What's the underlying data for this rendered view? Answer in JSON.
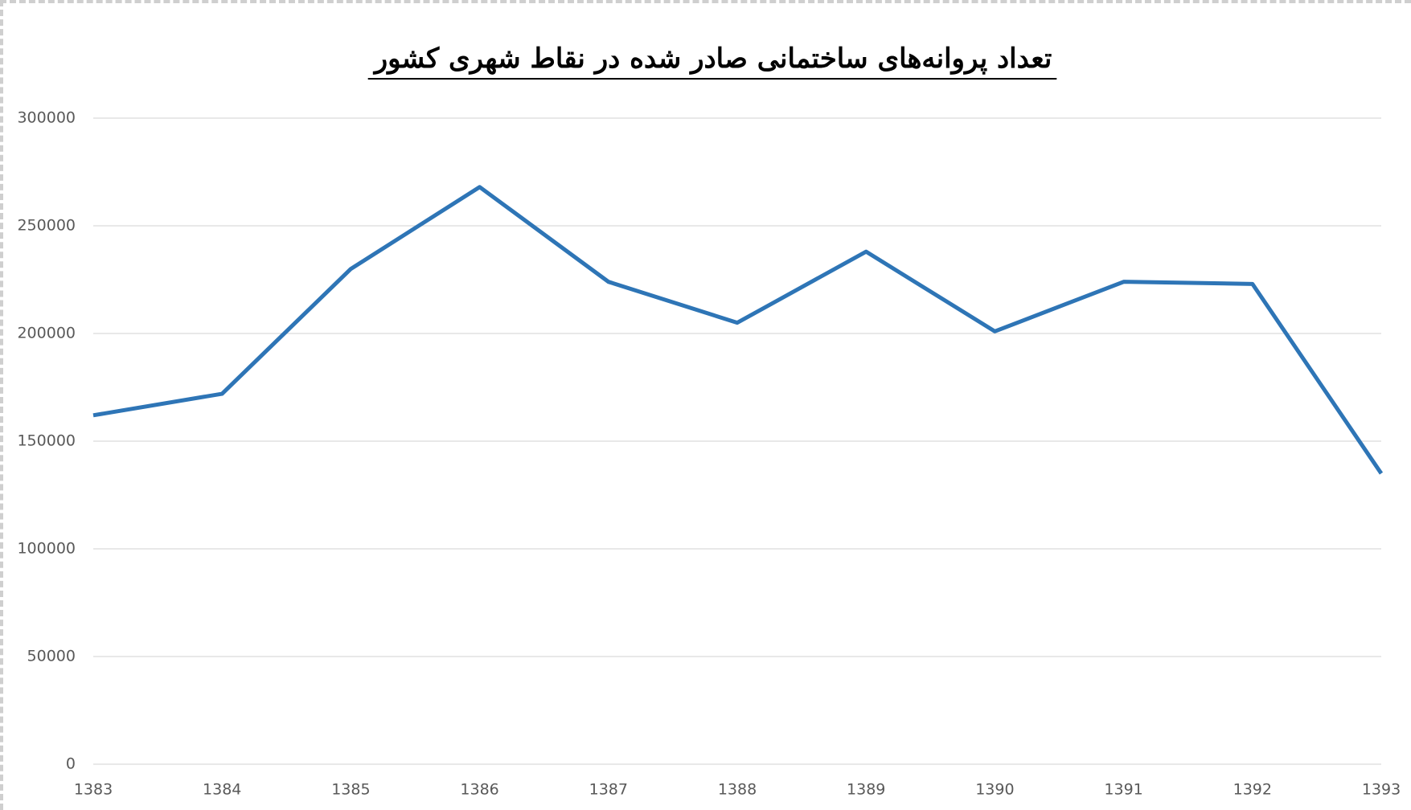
{
  "chart_data": {
    "type": "line",
    "title": "تعداد پروانه‌های ساختمانی صادر شده در نقاط شهری کشور",
    "categories": [
      "1383",
      "1384",
      "1385",
      "1386",
      "1387",
      "1388",
      "1389",
      "1390",
      "1391",
      "1392",
      "1393"
    ],
    "series": [
      {
        "name": "تعداد پروانه",
        "color": "#2e75b6",
        "values": [
          162000,
          172000,
          230000,
          268000,
          224000,
          205000,
          238000,
          201000,
          224000,
          223000,
          135000
        ]
      }
    ],
    "ylim": [
      0,
      300000
    ],
    "yticks": [
      0,
      50000,
      100000,
      150000,
      200000,
      250000,
      300000
    ],
    "grid": true
  }
}
